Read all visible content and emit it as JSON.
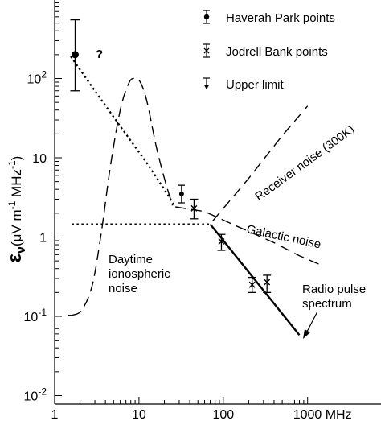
{
  "chart_data": {
    "type": "line",
    "scale": {
      "x": "log",
      "y": "log"
    },
    "xlim": [
      1,
      1600
    ],
    "ylim": [
      0.01,
      900
    ],
    "x_ticks": [
      {
        "value": 1,
        "label": "1"
      },
      {
        "value": 10,
        "label": "10"
      },
      {
        "value": 100,
        "label": "100"
      },
      {
        "value": 1000,
        "label": "1000 MHz"
      }
    ],
    "y_ticks": [
      {
        "value": 0.01,
        "base": "10",
        "exp": "-2"
      },
      {
        "value": 0.1,
        "base": "10",
        "exp": "-1"
      },
      {
        "value": 1,
        "base": "1",
        "exp": ""
      },
      {
        "value": 10,
        "base": "10",
        "exp": ""
      },
      {
        "value": 100,
        "base": "10",
        "exp": "2"
      }
    ],
    "ylabel": {
      "symbol": "ε",
      "subscript": "ν",
      "open": "(μV m",
      "exp1": "-1",
      "mid": " MHz",
      "exp2": "-1",
      "close": ")"
    },
    "legend": {
      "position": "top-right",
      "entries": [
        {
          "marker": "dot",
          "label": "Haverah Park points"
        },
        {
          "marker": "cross",
          "label": "Jodrell Bank points"
        },
        {
          "marker": "arrow",
          "label": "Upper limit"
        }
      ]
    },
    "curves": [
      {
        "id": "pulse-dotted",
        "style": "dotted",
        "points": [
          [
            1.55,
            190
          ],
          [
            3,
            70
          ],
          [
            6,
            25
          ],
          [
            12,
            9
          ],
          [
            20,
            4
          ],
          [
            27,
            2.4
          ]
        ]
      },
      {
        "id": "galactic",
        "style": "dashed",
        "points": [
          [
            27,
            2.4
          ],
          [
            60,
            2.1
          ],
          [
            150,
            1.35
          ],
          [
            400,
            0.85
          ],
          [
            800,
            0.58
          ],
          [
            1400,
            0.45
          ]
        ]
      },
      {
        "id": "receiver",
        "style": "dashed",
        "points": [
          [
            75,
            1.6
          ],
          [
            200,
            5.5
          ],
          [
            500,
            19
          ],
          [
            1000,
            45
          ]
        ]
      },
      {
        "id": "ionospheric",
        "style": "dashed",
        "points": [
          [
            1.6,
            0.103
          ],
          [
            2.1,
            0.12
          ],
          [
            2.8,
            0.25
          ],
          [
            3.6,
            1.2
          ],
          [
            4.6,
            8
          ],
          [
            6,
            40
          ],
          [
            7.6,
            88
          ],
          [
            9,
            100
          ],
          [
            10.5,
            88
          ],
          [
            12.5,
            50
          ],
          [
            16,
            14
          ],
          [
            20,
            5.5
          ],
          [
            25,
            2.5
          ]
        ]
      },
      {
        "id": "flat-dotted",
        "style": "dotted",
        "points": [
          [
            1.6,
            1.45
          ],
          [
            70,
            1.45
          ]
        ]
      },
      {
        "id": "spectrum",
        "style": "solid",
        "points": [
          [
            70,
            1.45
          ],
          [
            800,
            0.058
          ]
        ]
      },
      {
        "id": "baseline",
        "style": "solid-thin",
        "points": [
          [
            1.45,
            0.103
          ],
          [
            1.6,
            0.103
          ]
        ]
      }
    ],
    "haverah_points": [
      {
        "x": 1.75,
        "y": 200,
        "ylow": 70,
        "yhigh": 550
      },
      {
        "x": 32,
        "y": 3.5,
        "ylow": 2.7,
        "yhigh": 4.5
      }
    ],
    "jodrell_points": [
      {
        "x": 45,
        "y": 2.3,
        "ylow": 1.7,
        "yhigh": 3.0
      },
      {
        "x": 95,
        "y": 0.88,
        "ylow": 0.68,
        "yhigh": 1.08
      },
      {
        "x": 220,
        "y": 0.25,
        "ylow": 0.2,
        "yhigh": 0.31
      }
    ],
    "upper_limits": [
      {
        "x": 330,
        "y": 0.27,
        "ylow": 0.2,
        "yhigh": 0.33
      }
    ],
    "annotations": [
      {
        "id": "question-mark",
        "text": "?"
      },
      {
        "id": "receiver-noise",
        "text": "Receiver noise (300K)"
      },
      {
        "id": "galactic-noise",
        "text": "Galactic noise"
      },
      {
        "id": "daytime-1",
        "text": "Daytime"
      },
      {
        "id": "daytime-2",
        "text": "ionospheric"
      },
      {
        "id": "daytime-3",
        "text": "noise"
      },
      {
        "id": "radio-1",
        "text": "Radio pulse"
      },
      {
        "id": "radio-2",
        "text": "spectrum"
      }
    ]
  }
}
